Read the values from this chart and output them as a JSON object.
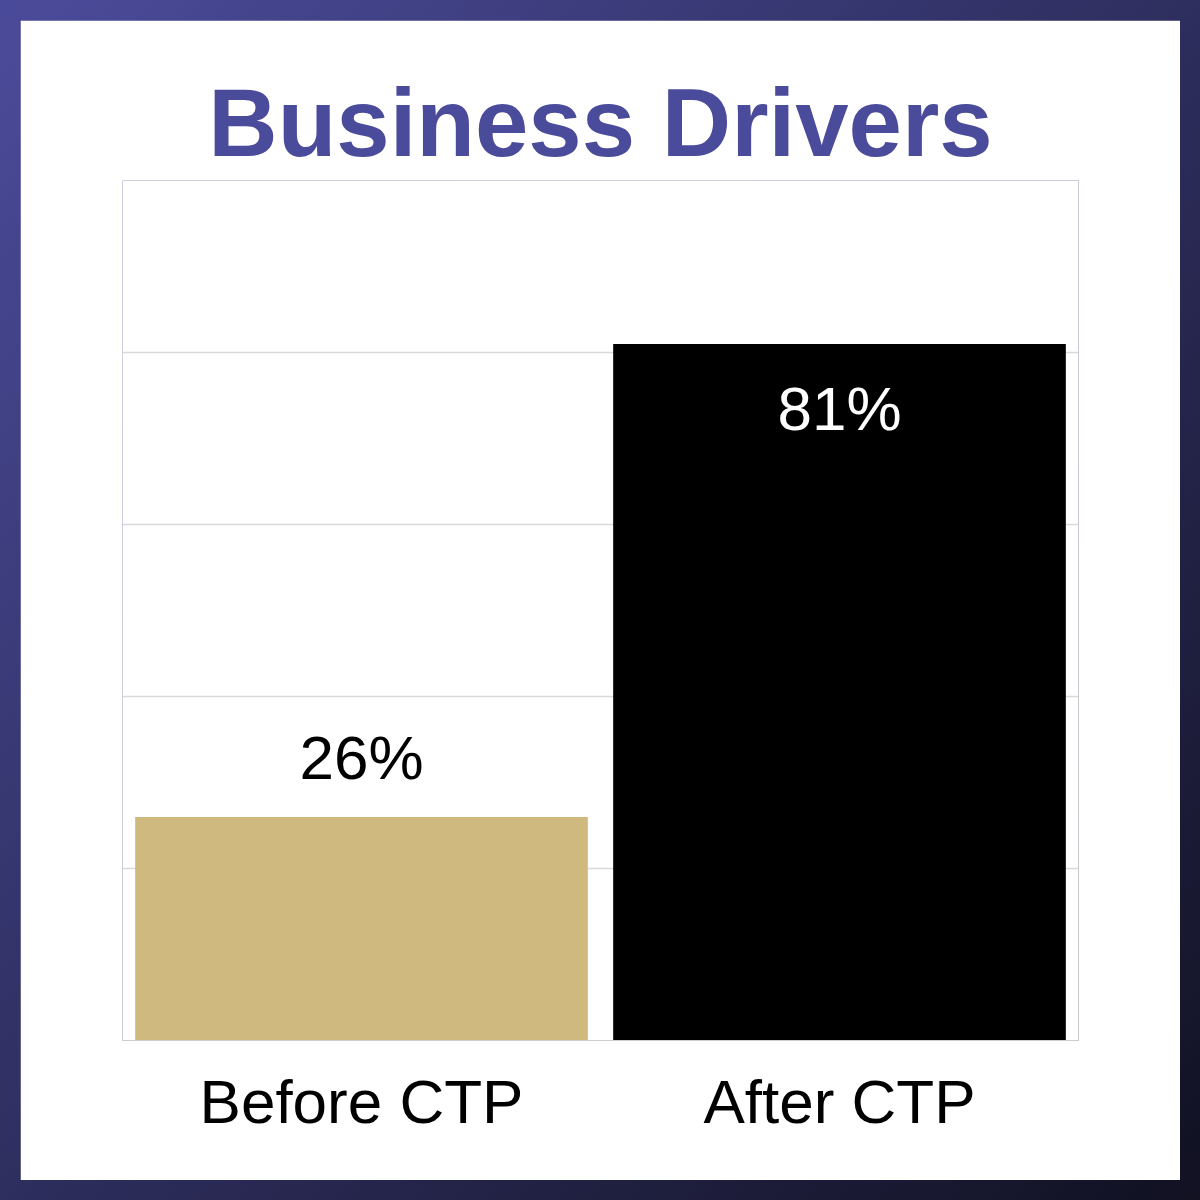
{
  "chart_data": {
    "type": "bar",
    "title": "Business Drivers",
    "categories": [
      "Before CTP",
      "After CTP"
    ],
    "values": [
      26,
      81
    ],
    "colors": [
      "#cfb97e",
      "#000000"
    ],
    "value_labels": [
      "26%",
      "81%"
    ],
    "ylim": [
      0,
      100
    ],
    "yticks": [
      {
        "value": 0,
        "label": null
      },
      {
        "value": 20,
        "label": null
      },
      {
        "value": 40,
        "label": null
      },
      {
        "value": 60,
        "label": null
      },
      {
        "value": 80,
        "label": null
      },
      {
        "value": 100,
        "label": null
      }
    ],
    "tick_labels": "x",
    "grid": "y"
  }
}
